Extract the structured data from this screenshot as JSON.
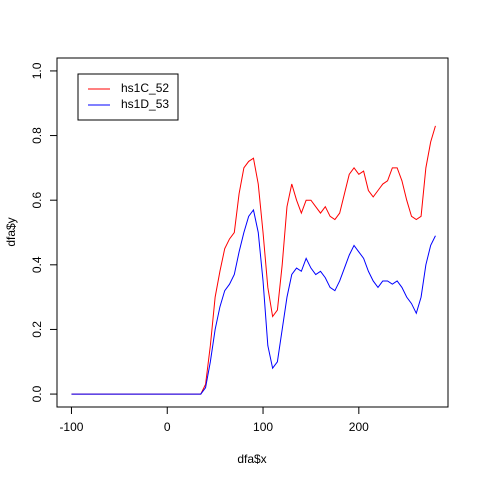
{
  "chart_data": {
    "type": "line",
    "xlabel": "dfa$x",
    "ylabel": "dfa$y",
    "x": [
      -100,
      -95,
      -90,
      -85,
      -80,
      -75,
      -70,
      -65,
      -60,
      -55,
      -50,
      -45,
      -40,
      -35,
      -30,
      -25,
      -20,
      -15,
      -10,
      -5,
      0,
      5,
      10,
      15,
      20,
      25,
      30,
      35,
      40,
      45,
      50,
      55,
      60,
      65,
      70,
      75,
      80,
      85,
      90,
      95,
      100,
      105,
      110,
      115,
      120,
      125,
      130,
      135,
      140,
      145,
      150,
      155,
      160,
      165,
      170,
      175,
      180,
      185,
      190,
      195,
      200,
      205,
      210,
      215,
      220,
      225,
      230,
      235,
      240,
      245,
      250,
      255,
      260,
      265,
      270,
      275,
      280
    ],
    "series": [
      {
        "name": "hs1C_52",
        "color": "#ff0000",
        "values": [
          0,
          0,
          0,
          0,
          0,
          0,
          0,
          0,
          0,
          0,
          0,
          0,
          0,
          0,
          0,
          0,
          0,
          0,
          0,
          0,
          0,
          0,
          0,
          0,
          0,
          0,
          0,
          0,
          0.03,
          0.15,
          0.3,
          0.38,
          0.45,
          0.48,
          0.5,
          0.62,
          0.7,
          0.72,
          0.73,
          0.65,
          0.5,
          0.33,
          0.24,
          0.26,
          0.4,
          0.58,
          0.65,
          0.6,
          0.56,
          0.6,
          0.6,
          0.58,
          0.56,
          0.58,
          0.55,
          0.54,
          0.56,
          0.62,
          0.68,
          0.7,
          0.68,
          0.69,
          0.63,
          0.61,
          0.63,
          0.65,
          0.66,
          0.7,
          0.7,
          0.66,
          0.6,
          0.55,
          0.54,
          0.55,
          0.7,
          0.78,
          0.83
        ]
      },
      {
        "name": "hs1D_53",
        "color": "#0000ff",
        "values": [
          0,
          0,
          0,
          0,
          0,
          0,
          0,
          0,
          0,
          0,
          0,
          0,
          0,
          0,
          0,
          0,
          0,
          0,
          0,
          0,
          0,
          0,
          0,
          0,
          0,
          0,
          0,
          0,
          0.02,
          0.1,
          0.2,
          0.27,
          0.32,
          0.34,
          0.37,
          0.44,
          0.5,
          0.55,
          0.57,
          0.5,
          0.35,
          0.15,
          0.08,
          0.1,
          0.2,
          0.3,
          0.37,
          0.39,
          0.38,
          0.42,
          0.39,
          0.37,
          0.38,
          0.36,
          0.33,
          0.32,
          0.35,
          0.39,
          0.43,
          0.46,
          0.44,
          0.42,
          0.38,
          0.35,
          0.33,
          0.35,
          0.35,
          0.34,
          0.35,
          0.33,
          0.3,
          0.28,
          0.25,
          0.3,
          0.4,
          0.46,
          0.49
        ]
      }
    ],
    "xlim": [
      -115.1,
      293.1
    ],
    "ylim": [
      -0.04,
      1.04
    ],
    "xticks": [
      -100,
      0,
      100,
      200
    ],
    "yticks": [
      {
        "value": 0,
        "label": "0.0"
      },
      0.2,
      0.4,
      0.6,
      0.8,
      {
        "value": 1,
        "label": "1.0"
      }
    ],
    "legend": "top-left"
  }
}
